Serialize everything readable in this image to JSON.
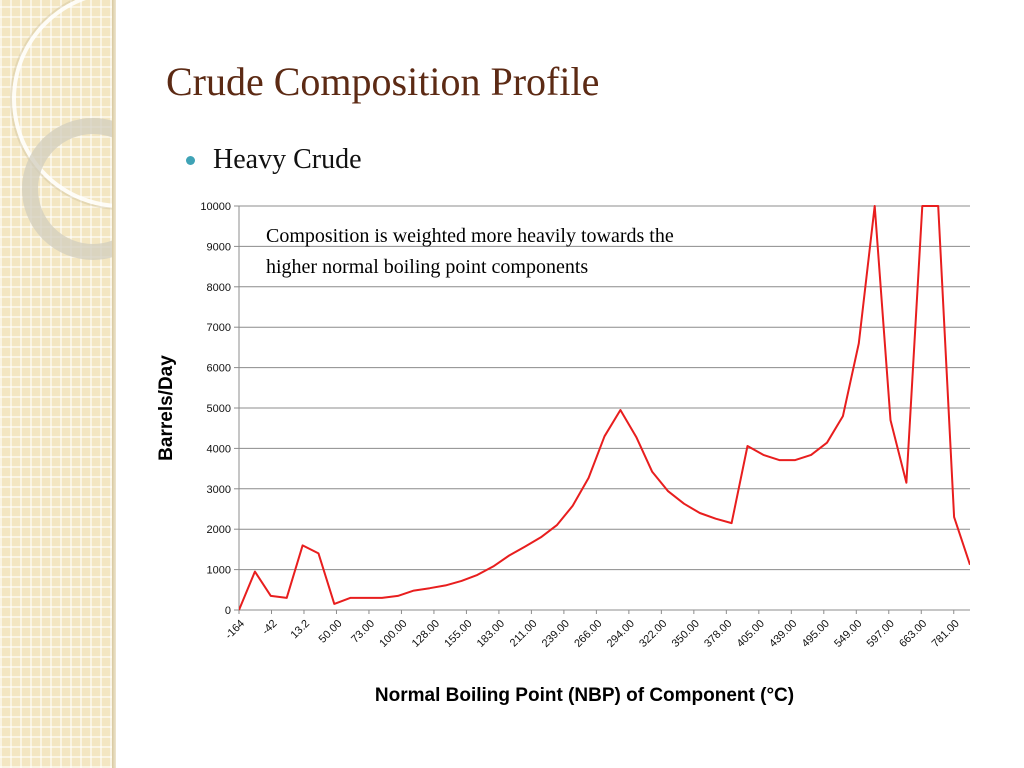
{
  "slide": {
    "title": "Crude Composition Profile",
    "bullet": "Heavy Crude"
  },
  "colors": {
    "title": "#5c2a14",
    "bullet": "#3fa3b6",
    "line": "#e81e1e",
    "grid": "#8c8c8c"
  },
  "chart_data": {
    "type": "line",
    "title": "",
    "xlabel": "Normal Boiling Point (NBP) of Component (°C)",
    "ylabel": "Barrels/Day",
    "ylim": [
      0,
      10000
    ],
    "yticks": [
      0,
      1000,
      2000,
      3000,
      4000,
      5000,
      6000,
      7000,
      8000,
      9000,
      10000
    ],
    "x_tick_labels": [
      "-164",
      "-42",
      "13.2",
      "50.00",
      "73.00",
      "100.00",
      "128.00",
      "155.00",
      "183.00",
      "211.00",
      "239.00",
      "266.00",
      "294.00",
      "322.00",
      "350.00",
      "378.00",
      "405.00",
      "439.00",
      "495.00",
      "549.00",
      "597.00",
      "663.00",
      "781.00"
    ],
    "grid": "horizontal",
    "annotation": "Composition is weighted more heavily towards the higher normal boiling point components",
    "series": [
      {
        "values": [
          0,
          950,
          350,
          300,
          1600,
          1400,
          150,
          300,
          300,
          300,
          350,
          480,
          540,
          610,
          720,
          870,
          1080,
          1350,
          1570,
          1800,
          2100,
          2580,
          3270,
          4300,
          4950,
          4280,
          3420,
          2940,
          2630,
          2400,
          2260,
          2150,
          4060,
          3840,
          3710,
          3710,
          3840,
          4140,
          4800,
          6600,
          10000,
          4700,
          3150,
          10000,
          10000,
          2300,
          1120
        ]
      }
    ]
  }
}
